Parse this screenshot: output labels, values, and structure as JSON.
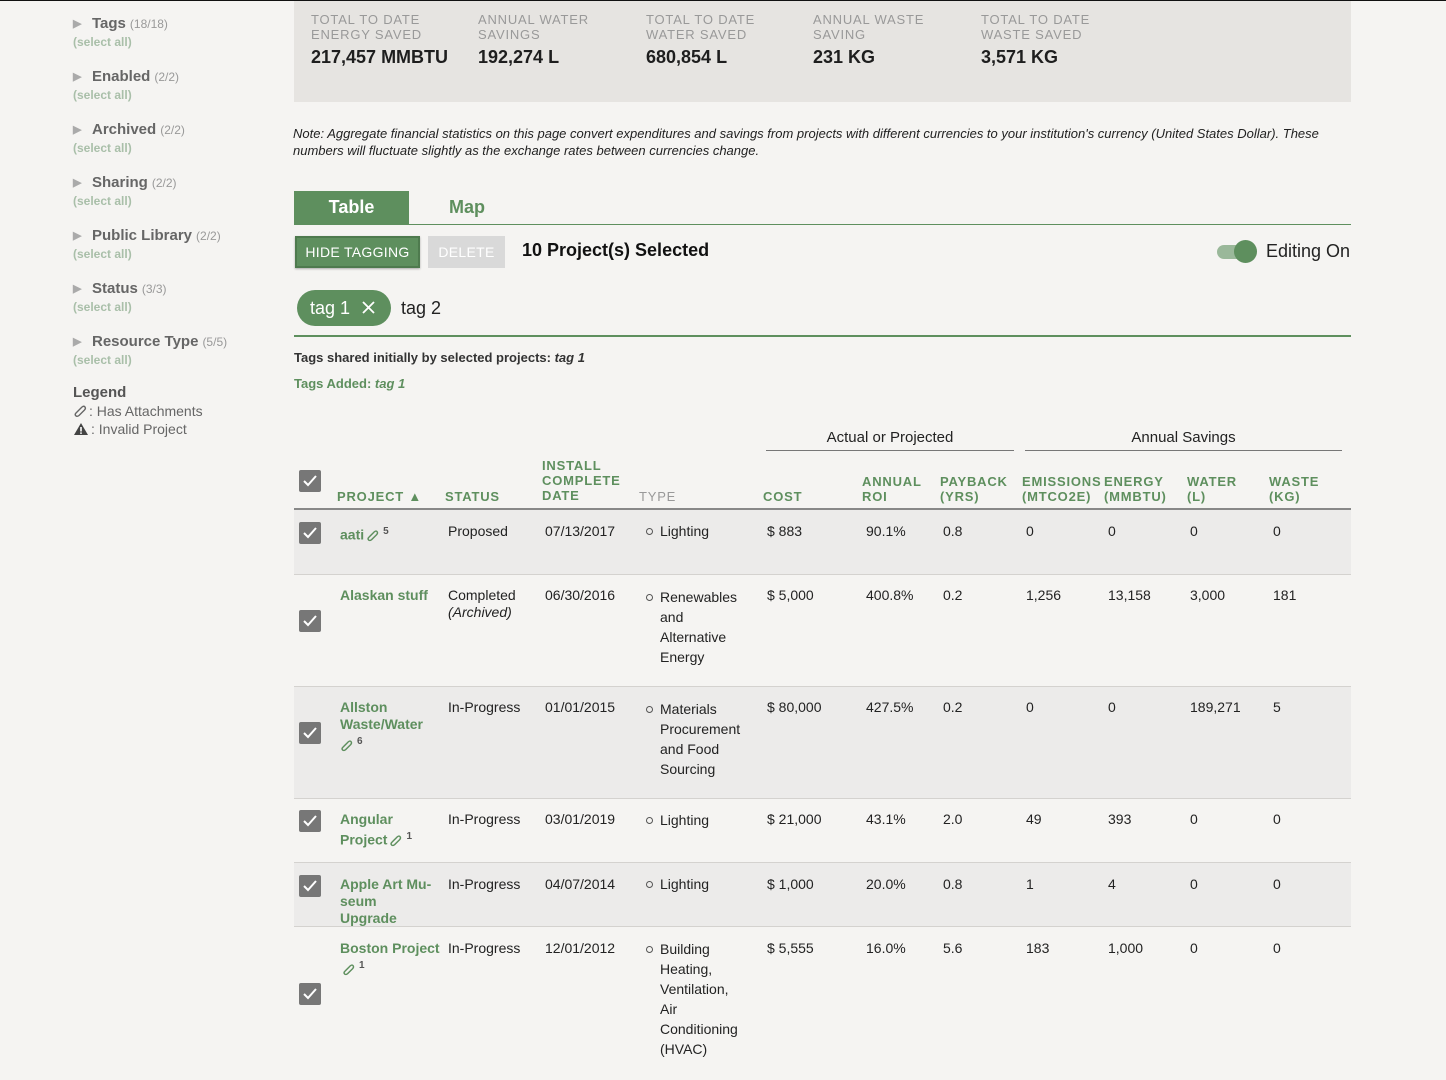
{
  "sidebar": {
    "filters": [
      {
        "label": "Tags",
        "count": "(18/18)",
        "select_all": "(select all)"
      },
      {
        "label": "Enabled",
        "count": "(2/2)",
        "select_all": "(select all)"
      },
      {
        "label": "Archived",
        "count": "(2/2)",
        "select_all": "(select all)"
      },
      {
        "label": "Sharing",
        "count": "(2/2)",
        "select_all": "(select all)"
      },
      {
        "label": "Public Library",
        "count": "(2/2)",
        "select_all": "(select all)"
      },
      {
        "label": "Status",
        "count": "(3/3)",
        "select_all": "(select all)"
      },
      {
        "label": "Resource Type",
        "count": "(5/5)",
        "select_all": "(select all)"
      }
    ],
    "legend": {
      "title": "Legend",
      "attachments": ": Has Attachments",
      "invalid": ": Invalid Project"
    }
  },
  "stats": [
    {
      "label": "TOTAL TO DATE ENERGY SAVED",
      "value": "217,457 MMBTU"
    },
    {
      "label": "ANNUAL WATER SAVINGS",
      "value": "192,274 L"
    },
    {
      "label": "TOTAL TO DATE WATER SAVED",
      "value": "680,854 L"
    },
    {
      "label": "ANNUAL WASTE SAVING",
      "value": "231 KG"
    },
    {
      "label": "TOTAL TO DATE WASTE SAVED",
      "value": "3,571 KG"
    }
  ],
  "note": "Note: Aggregate financial statistics on this page convert expenditures and savings from projects with different currencies to your institution's currency (United States Dollar). These numbers will fluctuate slightly as the exchange rates between currencies change.",
  "tabs": {
    "table": "Table",
    "map": "Map"
  },
  "toolbar": {
    "hide_tagging": "HIDE TAGGING",
    "delete": "DELETE",
    "selected": "10 Project(s) Selected",
    "editing": "Editing On"
  },
  "tagging": {
    "chip": "tag 1",
    "input_value": "tag 2",
    "shared_label": "Tags shared initially by selected projects:",
    "shared_value": "tag 1",
    "added_label": "Tags Added:",
    "added_value": "tag 1"
  },
  "table": {
    "group_actual": "Actual or Projected",
    "group_savings": "Annual Savings",
    "headers": {
      "project": "PROJECT ▲",
      "status": "STATUS",
      "install": "INSTALL COMPLETE DATE",
      "type": "TYPE",
      "cost": "COST",
      "roi": "ANNUAL ROI",
      "payback": "PAYBACK (YRS)",
      "emissions": "EMISSIONS (MTCO2E)",
      "energy": "ENERGY (MMBTU)",
      "water": "WATER (L)",
      "waste": "WASTE (KG)"
    },
    "rows": [
      {
        "name": "aati",
        "attach": "5",
        "status": "Proposed",
        "status_sub": "",
        "date": "07/13/2017",
        "type": "Lighting",
        "cost": "$ 883",
        "roi": "90.1%",
        "payback": "0.8",
        "emissions": "0",
        "energy": "0",
        "water": "0",
        "waste": "0"
      },
      {
        "name": "Alaskan stuff",
        "attach": "",
        "status": "Completed",
        "status_sub": "(Archived)",
        "date": "06/30/2016",
        "type": "Renewables and Alternative Energy",
        "cost": "$ 5,000",
        "roi": "400.8%",
        "payback": "0.2",
        "emissions": "1,256",
        "energy": "13,158",
        "water": "3,000",
        "waste": "181"
      },
      {
        "name": "Allston Waste/Water",
        "attach": "6",
        "status": "In-Progress",
        "status_sub": "",
        "date": "01/01/2015",
        "type": "Materials Procurement and Food Sourcing",
        "cost": "$ 80,000",
        "roi": "427.5%",
        "payback": "0.2",
        "emissions": "0",
        "energy": "0",
        "water": "189,271",
        "waste": "5"
      },
      {
        "name": "Angular Project",
        "attach": "1",
        "status": "In-Progress",
        "status_sub": "",
        "date": "03/01/2019",
        "type": "Lighting",
        "cost": "$ 21,000",
        "roi": "43.1%",
        "payback": "2.0",
        "emissions": "49",
        "energy": "393",
        "water": "0",
        "waste": "0"
      },
      {
        "name": "Apple Art Mu-seum Upgrade",
        "attach": "",
        "status": "In-Progress",
        "status_sub": "",
        "date": "04/07/2014",
        "type": "Lighting",
        "cost": "$ 1,000",
        "roi": "20.0%",
        "payback": "0.8",
        "emissions": "1",
        "energy": "4",
        "water": "0",
        "waste": "0"
      },
      {
        "name": "Boston Project",
        "attach": "1",
        "status": "In-Progress",
        "status_sub": "",
        "date": "12/01/2012",
        "type": "Building Heating, Ventilation, Air Conditioning (HVAC)",
        "cost": "$ 5,555",
        "roi": "16.0%",
        "payback": "5.6",
        "emissions": "183",
        "energy": "1,000",
        "water": "0",
        "waste": "0"
      }
    ]
  }
}
